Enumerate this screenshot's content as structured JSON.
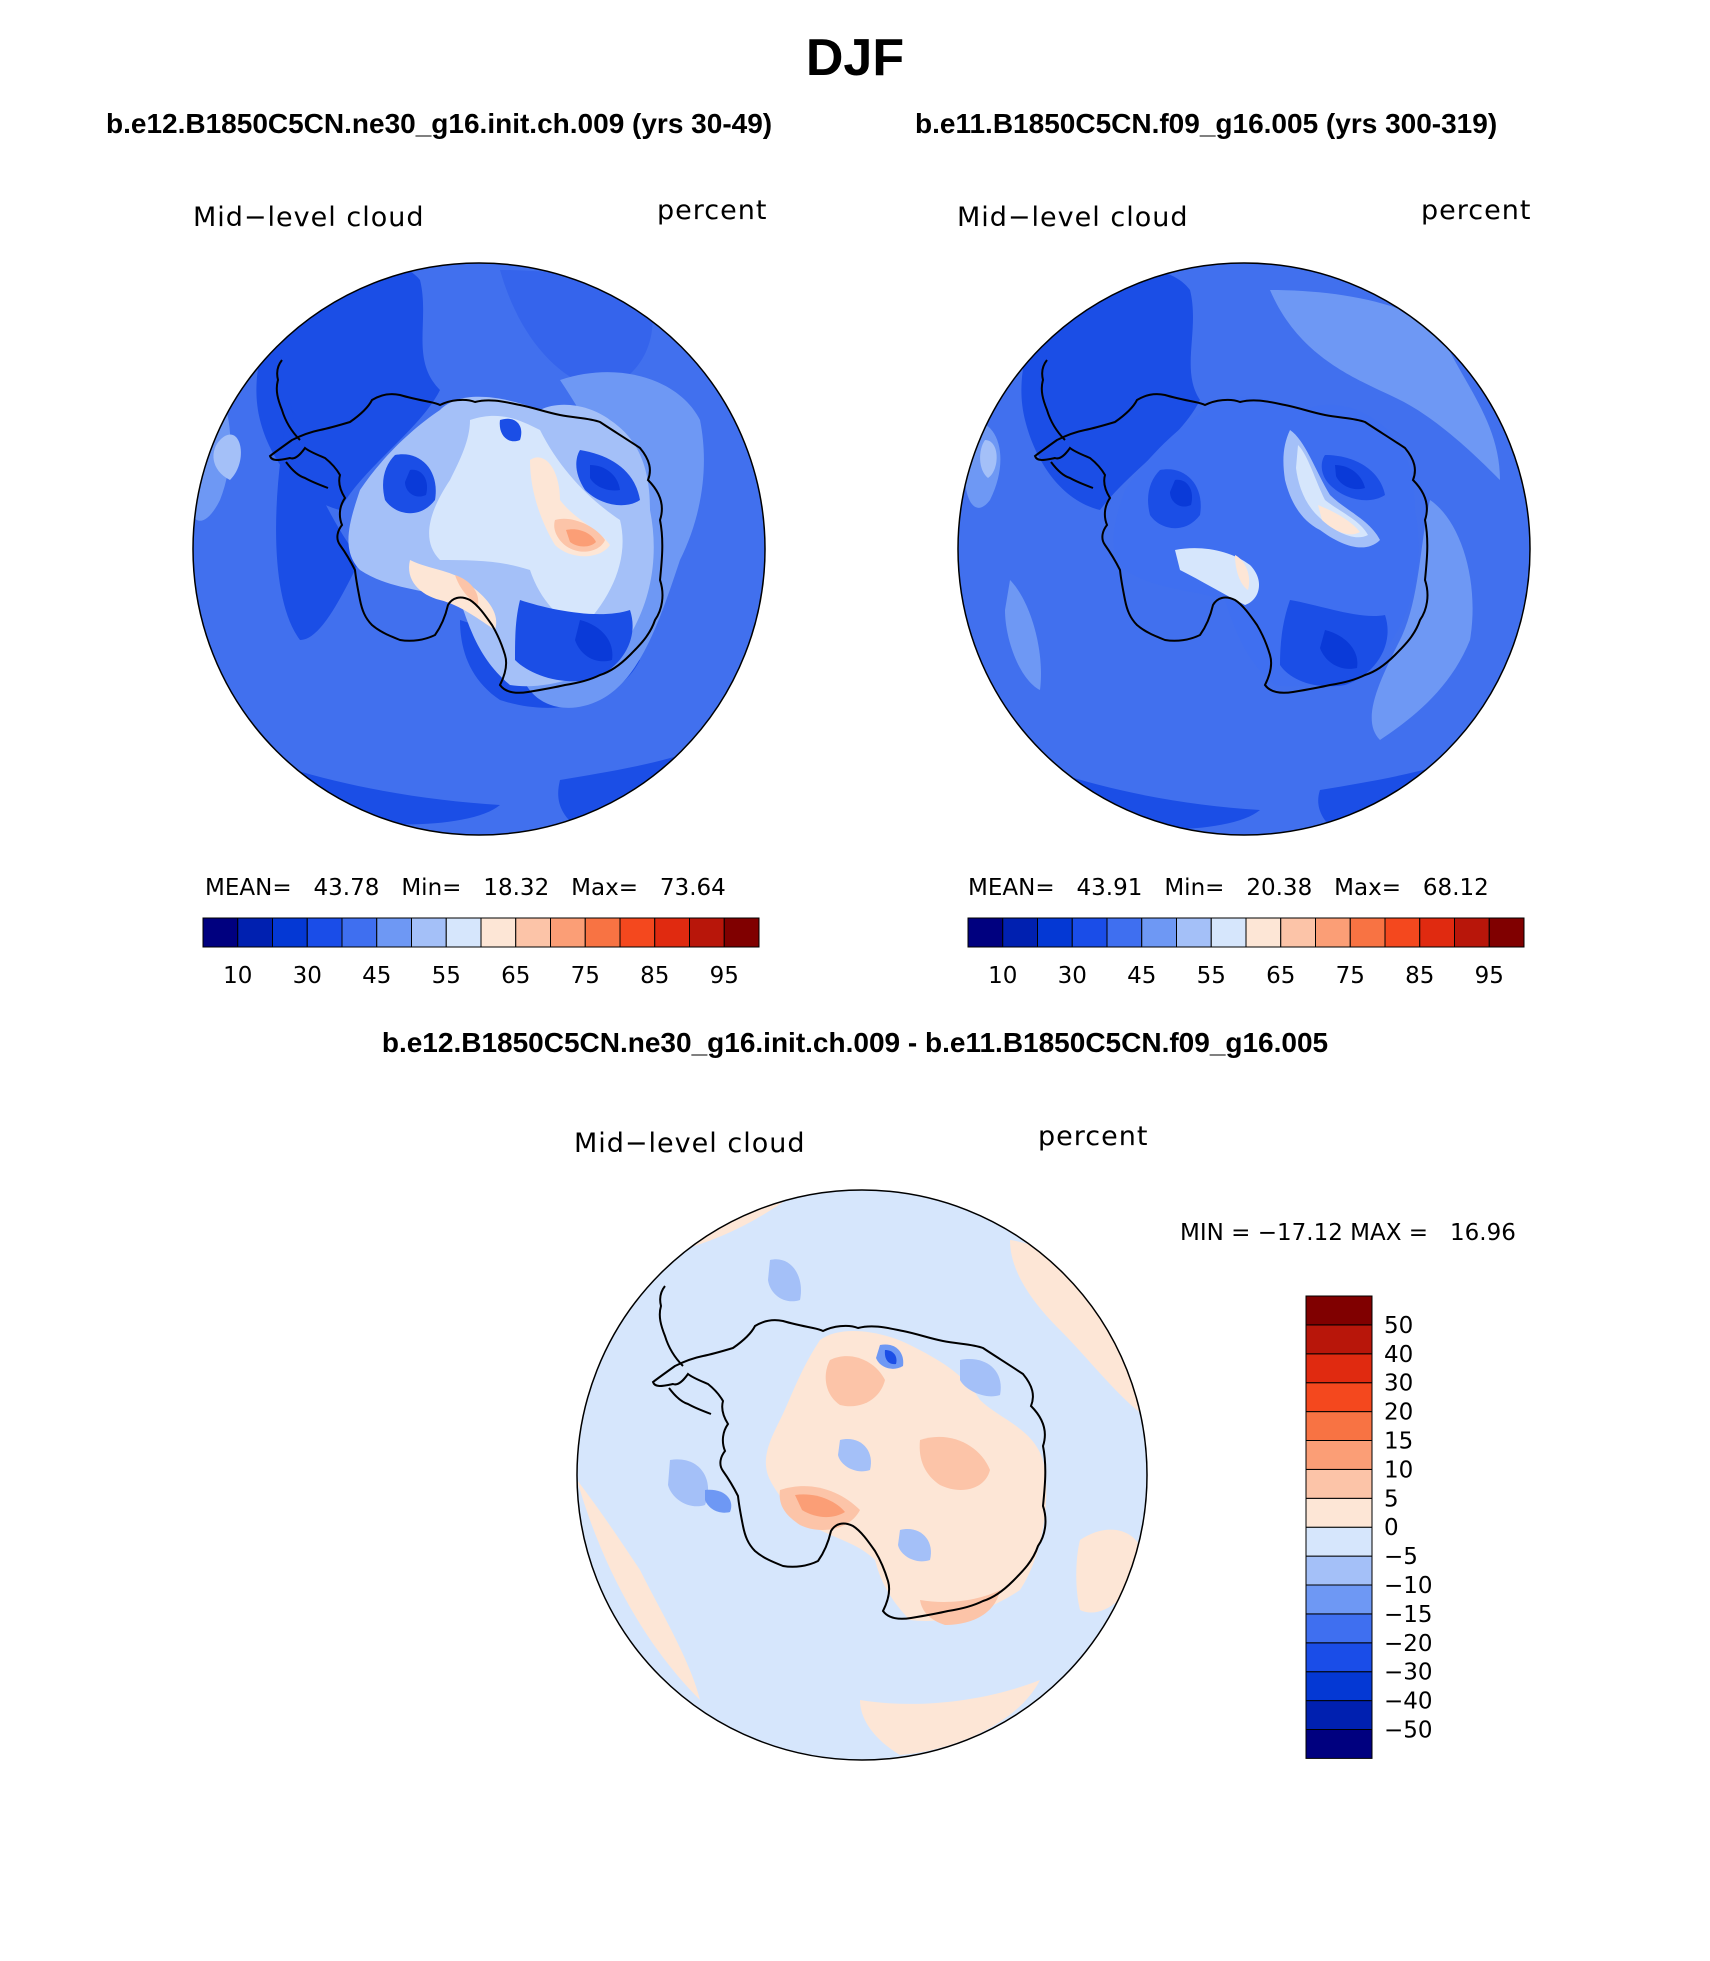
{
  "figure_title": "DJF",
  "panels": [
    {
      "case_title": "b.e12.B1850C5CN.ne30_g16.init.ch.009 (yrs 30-49)",
      "variable": "Mid−level cloud",
      "units": "percent",
      "mean_label": "MEAN=",
      "mean": "43.78",
      "min_label": "Min=",
      "min": "18.32",
      "max_label": "Max=",
      "max": "73.64"
    },
    {
      "case_title": "b.e11.B1850C5CN.f09_g16.005 (yrs 300-319)",
      "variable": "Mid−level cloud",
      "units": "percent",
      "mean_label": "MEAN=",
      "mean": "43.91",
      "min_label": "Min=",
      "min": "20.38",
      "max_label": "Max=",
      "max": "68.12"
    }
  ],
  "difference": {
    "title": "b.e12.B1850C5CN.ne30_g16.init.ch.009 - b.e11.B1850C5CN.f09_g16.005",
    "variable": "Mid−level cloud",
    "units": "percent",
    "minmax_text": "MIN = −17.12 MAX =   16.96"
  },
  "colorbar_levels": {
    "abs_colors": [
      "#00007f",
      "#0020b0",
      "#0438d4",
      "#1a4de8",
      "#3f6ff0",
      "#6e98f4",
      "#a4c0f8",
      "#d6e6fc",
      "#fde6d6",
      "#fcc4a8",
      "#fb9e76",
      "#f87343",
      "#f4481e",
      "#e02a10",
      "#b8160a",
      "#800000"
    ],
    "abs_labels": [
      "10",
      "30",
      "45",
      "55",
      "65",
      "75",
      "85",
      "95"
    ],
    "diff_colors": [
      "#00007f",
      "#0020b0",
      "#0438d4",
      "#1a4de8",
      "#3f6ff0",
      "#6e98f4",
      "#a4c0f8",
      "#d6e6fc",
      "#fde6d6",
      "#fcc4a8",
      "#fb9e76",
      "#f87343",
      "#f4481e",
      "#e02a10",
      "#b8160a",
      "#800000"
    ],
    "diff_labels": [
      "−50",
      "−40",
      "−30",
      "−20",
      "−15",
      "−10",
      "−5",
      "0",
      "5",
      "10",
      "15",
      "20",
      "30",
      "40",
      "50"
    ]
  }
}
